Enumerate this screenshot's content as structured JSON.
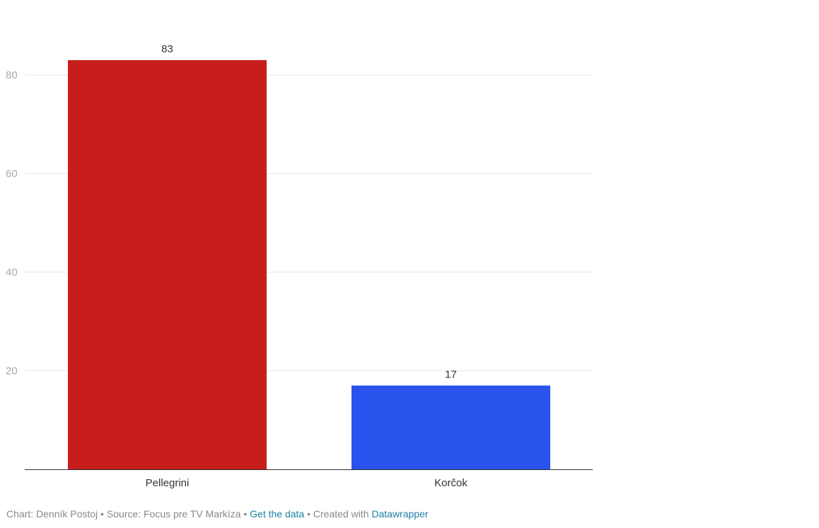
{
  "chart_data": {
    "type": "bar",
    "categories": [
      "Pellegrini",
      "Korčok"
    ],
    "values": [
      83,
      17
    ],
    "colors": [
      "#c71e1d",
      "#2a52ec"
    ],
    "yticks": [
      20,
      40,
      60,
      80
    ],
    "ylim": [
      0,
      80
    ],
    "grid": true,
    "title": "",
    "xlabel": "",
    "ylabel": ""
  },
  "footer": {
    "chart_by": "Chart: Denník Postoj",
    "sep": " • ",
    "source": "Source: Focus pre TV Markíza",
    "get_data": "Get the data",
    "created_with": "Created with ",
    "tool": "Datawrapper"
  }
}
